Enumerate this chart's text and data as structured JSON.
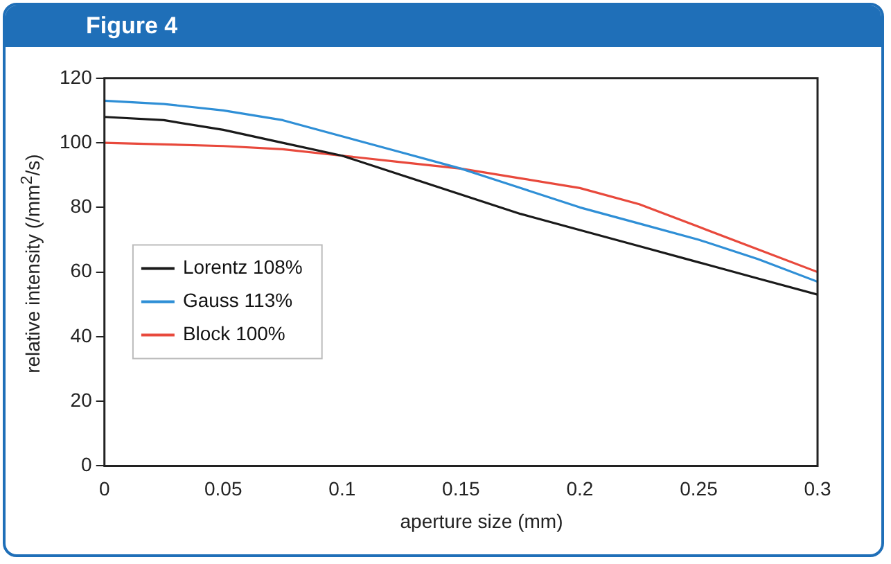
{
  "chart_data": {
    "type": "line",
    "title": "Figure 4",
    "xlabel": "aperture size (mm)",
    "ylabel": "relative intensity (/mm$^{2}$/s)",
    "x": [
      0,
      0.025,
      0.05,
      0.075,
      0.1,
      0.125,
      0.15,
      0.175,
      0.2,
      0.225,
      0.25,
      0.275,
      0.3
    ],
    "series": [
      {
        "name": "Lorentz 108%",
        "color": "#1a1a1a",
        "values": [
          108,
          107,
          104,
          100,
          96,
          90,
          84,
          78,
          73,
          68,
          63,
          58,
          53
        ]
      },
      {
        "name": "Gauss 113%",
        "color": "#2f8fd6",
        "values": [
          113,
          112,
          110,
          107,
          102,
          97,
          92,
          86,
          80,
          75,
          70,
          64,
          57
        ]
      },
      {
        "name": "Block 100%",
        "color": "#e8493c",
        "values": [
          100,
          99.5,
          99,
          98,
          96,
          94,
          92,
          89,
          86,
          81,
          74,
          67,
          60
        ]
      }
    ],
    "xlim": [
      0,
      0.3
    ],
    "xticks": [
      0,
      0.05,
      0.1,
      0.15,
      0.2,
      0.25,
      0.3
    ],
    "ylim": [
      0,
      120
    ],
    "yticks": [
      0,
      20,
      40,
      60,
      80,
      100,
      120
    ],
    "grid": false,
    "legend": "left",
    "marker": "none",
    "line_style": "solid"
  }
}
